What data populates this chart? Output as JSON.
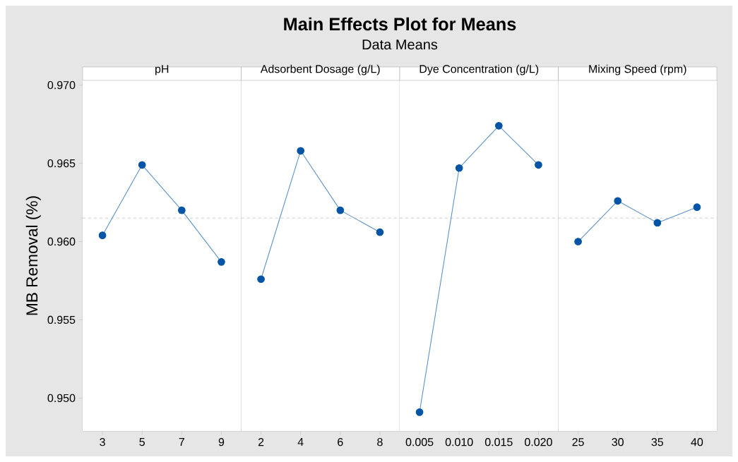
{
  "chart_data": [
    {
      "type": "other",
      "title": "Main Effects Plot for Means",
      "subtitle": "Data Means"
    },
    {
      "type": "line",
      "xlabel": "pH",
      "ylabel": "MB Removal (%)",
      "categories": [
        "3",
        "5",
        "7",
        "9"
      ],
      "series": [
        {
          "color": "#0054a6",
          "values": [
            0.9604,
            0.9649,
            0.962,
            0.9587
          ]
        }
      ],
      "ylim": [
        0.9479,
        0.9703
      ],
      "yticks": [
        {
          "value": 0.95,
          "label": "0.950"
        },
        {
          "value": 0.955,
          "label": "0.955"
        },
        {
          "value": 0.96,
          "label": "0.960"
        },
        {
          "value": 0.965,
          "label": "0.965"
        },
        {
          "value": 0.97,
          "label": "0.970"
        }
      ],
      "ref_lines": [
        {
          "axis": "y",
          "value": 0.9615,
          "color": "#a0a0a0",
          "line_style": "dashed"
        }
      ],
      "marker": "circle",
      "line_style": "solid"
    },
    {
      "type": "line",
      "xlabel": "Adsorbent Dosage (g/L)",
      "categories": [
        "2",
        "4",
        "6",
        "8"
      ],
      "series": [
        {
          "color": "#0054a6",
          "values": [
            0.9576,
            0.9658,
            0.962,
            0.9606
          ]
        }
      ],
      "ylim": [
        0.9479,
        0.9703
      ],
      "tick_labels": "x",
      "ref_lines": [
        {
          "axis": "y",
          "value": 0.9615,
          "color": "#a0a0a0",
          "line_style": "dashed"
        }
      ],
      "marker": "circle",
      "line_style": "solid"
    },
    {
      "type": "line",
      "xlabel": "Dye Concentration (g/L)",
      "categories": [
        "0.005",
        "0.010",
        "0.015",
        "0.020"
      ],
      "series": [
        {
          "color": "#0054a6",
          "values": [
            0.9491,
            0.9647,
            0.9674,
            0.9649
          ]
        }
      ],
      "ylim": [
        0.9479,
        0.9703
      ],
      "tick_labels": "x",
      "ref_lines": [
        {
          "axis": "y",
          "value": 0.9615,
          "color": "#a0a0a0",
          "line_style": "dashed"
        }
      ],
      "marker": "circle",
      "line_style": "solid"
    },
    {
      "type": "line",
      "xlabel": "Mixing Speed (rpm)",
      "categories": [
        "25",
        "30",
        "35",
        "40"
      ],
      "series": [
        {
          "color": "#0054a6",
          "values": [
            0.96,
            0.9626,
            0.9612,
            0.9622
          ]
        }
      ],
      "ylim": [
        0.9479,
        0.9703
      ],
      "tick_labels": "x",
      "ref_lines": [
        {
          "axis": "y",
          "value": 0.9615,
          "color": "#a0a0a0",
          "line_style": "dashed"
        }
      ],
      "marker": "circle",
      "line_style": "solid"
    }
  ]
}
